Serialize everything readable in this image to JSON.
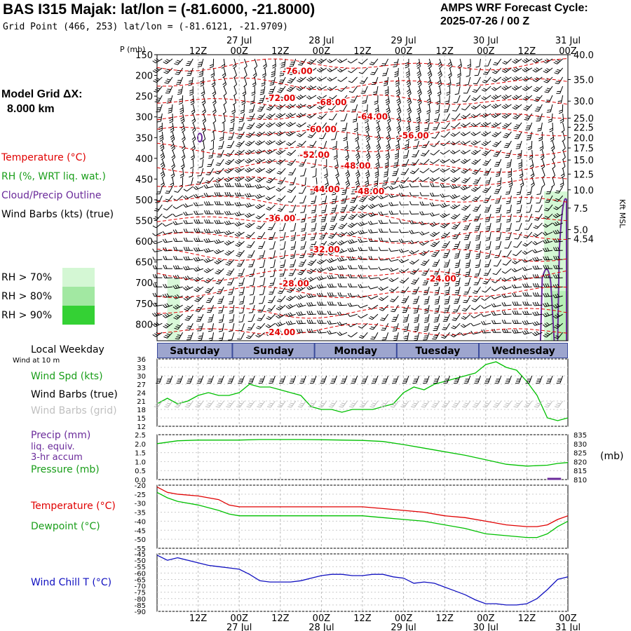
{
  "header": {
    "title": "BAS I315 Majak:  lat/lon = (-81.6000, -21.8000)",
    "grid_point": "Grid Point (466, 253) lat/lon = (-81.6121, -21.9709)",
    "cycle_line1": "AMPS WRF Forecast Cycle:",
    "cycle_line2": "2025-07-26 / 00  Z"
  },
  "model_grid": {
    "label": "Model Grid ΔX:",
    "value": "8.000 km"
  },
  "legend": {
    "temperature": "Temperature (°C)",
    "rh": "RH (%, WRT liq. wat.)",
    "cloud": "Cloud/Precip Outline",
    "wind": "Wind Barbs (kts) (true)",
    "rh70": "RH > 70%",
    "rh80": "RH > 80%",
    "rh90": "RH > 90%"
  },
  "colors": {
    "temperature": "#e00000",
    "rh": "#1a9e1a",
    "cloud": "#6a2a9a",
    "rh70": "#d4f7d4",
    "rh80": "#a2e8a2",
    "rh90": "#34d134",
    "series_green": "#00c000",
    "series_red": "#e00000",
    "series_blue": "#1010c0",
    "weekday_bar": "#3a4a9a"
  },
  "time_axis": {
    "hour_ticks": [
      "12Z",
      "00Z",
      "12Z",
      "00Z",
      "12Z",
      "00Z",
      "12Z",
      "00Z",
      "12Z",
      "00Z"
    ],
    "date_ticks": [
      "27 Jul",
      "28 Jul",
      "29 Jul",
      "30 Jul",
      "31 Jul"
    ],
    "weekdays": [
      "Saturday",
      "Sunday",
      "Monday",
      "Tuesday",
      "Wednesday"
    ],
    "weekday_title": "Local Weekday",
    "wind_height": "Wind at 10 m"
  },
  "cross_section": {
    "p_label": "P (mb)",
    "pressure_ticks": [
      "150",
      "200",
      "250",
      "300",
      "350",
      "400",
      "450",
      "500",
      "550",
      "600",
      "650",
      "700",
      "750",
      "800"
    ],
    "kft_ticks": [
      "40.0",
      "35.0",
      "30.0",
      "25.0",
      "22.5",
      "20.0",
      "17.5",
      "15.0",
      "12.5",
      "10.0",
      "7.5",
      "5.0",
      "4.54"
    ],
    "kft_label": "Kft MSL"
  },
  "panel_labels": {
    "wind_spd": "Wind Spd (kts)",
    "wind_barbs_true": "Wind Barbs (true)",
    "wind_barbs_grid": "Wind Barbs (grid)",
    "precip_1": "Precip (mm)",
    "precip_2": "liq. equiv.",
    "precip_3": "3-hr accum",
    "pressure": "Pressure (mb)",
    "pressure_unit": "(mb)",
    "temperature": "Temperature (°C)",
    "dewpoint": "Dewpoint (°C)",
    "wind_chill": "Wind Chill T (°C)"
  },
  "chart_data": [
    {
      "type": "heatmap",
      "panel": "time-height cross section",
      "y_axis": "pressure (mb)",
      "ylim": [
        840,
        150
      ],
      "xlim_hours": [
        0,
        120
      ],
      "temperature_contours": [
        {
          "label": "-76.00",
          "hour": 41,
          "p": 190
        },
        {
          "label": "-72.00",
          "hour": 36,
          "p": 255
        },
        {
          "label": "-68.00",
          "hour": 51,
          "p": 265
        },
        {
          "label": "-64.00",
          "hour": 63,
          "p": 300
        },
        {
          "label": "-60.00",
          "hour": 48,
          "p": 330
        },
        {
          "label": "-56.00",
          "hour": 75,
          "p": 345
        },
        {
          "label": "-52.00",
          "hour": 46,
          "p": 392
        },
        {
          "label": "-48.00",
          "hour": 58,
          "p": 418
        },
        {
          "label": "-44.00",
          "hour": 49,
          "p": 475
        },
        {
          "label": "-48.00",
          "hour": 62,
          "p": 480
        },
        {
          "label": "-36.00",
          "hour": 36,
          "p": 545
        },
        {
          "label": "-32.00",
          "hour": 49,
          "p": 620
        },
        {
          "label": "-24.00",
          "hour": 83,
          "p": 690
        },
        {
          "label": "-28.00",
          "hour": 40,
          "p": 702
        },
        {
          "label": "-24.00",
          "hour": 36,
          "p": 820
        }
      ]
    },
    {
      "type": "line",
      "panel": "wind speed",
      "ylim": [
        12,
        36
      ],
      "y_ticks": [
        "36",
        "33",
        "30",
        "27",
        "24",
        "21",
        "18",
        "15",
        "12"
      ],
      "x_hours": [
        0,
        3,
        6,
        9,
        12,
        15,
        18,
        21,
        24,
        27,
        30,
        33,
        36,
        39,
        42,
        45,
        48,
        51,
        54,
        57,
        60,
        63,
        66,
        69,
        72,
        75,
        78,
        81,
        84,
        87,
        90,
        93,
        96,
        99,
        102,
        105,
        108,
        111,
        114,
        117,
        120
      ],
      "series": [
        {
          "values": [
            20,
            22,
            20,
            21,
            23,
            24,
            23,
            23,
            24,
            27,
            26,
            26,
            25,
            24,
            23,
            19,
            18,
            18,
            17,
            18,
            18,
            18,
            19,
            20,
            24,
            26,
            25,
            27,
            28,
            29,
            30,
            31,
            34,
            35,
            33,
            32,
            28,
            23,
            15,
            14,
            15
          ]
        }
      ]
    },
    {
      "type": "line",
      "panel": "precip / pressure",
      "ylim": [
        0.0,
        2.5
      ],
      "y_ticks": [
        "2.5",
        "2.0",
        "1.5",
        "1.0",
        "0.5",
        "0.0"
      ],
      "y2_ticks": [
        "835",
        "830",
        "825",
        "820",
        "815",
        "810"
      ],
      "x_hours": [
        0,
        6,
        12,
        18,
        24,
        30,
        36,
        42,
        48,
        54,
        60,
        66,
        72,
        78,
        84,
        90,
        96,
        102,
        108,
        114,
        117,
        120
      ],
      "series": [
        {
          "values": [
            830.0,
            831.6,
            832.0,
            832.0,
            832.0,
            832.3,
            832.3,
            832.3,
            832.2,
            832.0,
            831.8,
            831.2,
            829.5,
            827.5,
            825.5,
            823.5,
            821.0,
            818.5,
            817.5,
            818.0,
            819.0,
            819.5
          ]
        }
      ]
    },
    {
      "type": "line",
      "panel": "temperature / dewpoint",
      "ylim": [
        -55,
        -20
      ],
      "y_ticks": [
        "-20",
        "-25",
        "-30",
        "-35",
        "-40",
        "-45",
        "-50",
        "-55"
      ],
      "x_hours": [
        0,
        3,
        6,
        12,
        18,
        21,
        24,
        30,
        36,
        42,
        48,
        54,
        60,
        66,
        72,
        78,
        84,
        90,
        96,
        102,
        108,
        111,
        114,
        117,
        120
      ],
      "series": [
        {
          "values": [
            -21,
            -24,
            -25,
            -26,
            -28,
            -31,
            -32,
            -32,
            -32,
            -32,
            -32,
            -32,
            -32,
            -33,
            -34,
            -35,
            -37,
            -38,
            -40,
            -42,
            -43,
            -43,
            -42,
            -39,
            -37
          ]
        },
        {
          "values": [
            -24,
            -27,
            -29,
            -31,
            -34,
            -36,
            -37,
            -37,
            -37,
            -37,
            -37,
            -37,
            -37,
            -38,
            -39,
            -40,
            -42,
            -44,
            -47,
            -48,
            -49,
            -49,
            -47,
            -43,
            -40
          ]
        }
      ]
    },
    {
      "type": "line",
      "panel": "wind chill",
      "ylim": [
        -90,
        -45
      ],
      "y_ticks": [
        "-45",
        "-50",
        "-55",
        "-60",
        "-65",
        "-70",
        "-75",
        "-80",
        "-85",
        "-90"
      ],
      "x_hours": [
        0,
        3,
        6,
        9,
        12,
        15,
        18,
        21,
        24,
        27,
        30,
        33,
        36,
        39,
        42,
        45,
        48,
        51,
        54,
        57,
        60,
        63,
        66,
        69,
        72,
        75,
        78,
        81,
        84,
        87,
        90,
        93,
        96,
        99,
        102,
        105,
        108,
        111,
        114,
        117,
        120
      ],
      "series": [
        {
          "values": [
            -46,
            -50,
            -48,
            -50,
            -52,
            -54,
            -55,
            -56,
            -57,
            -61,
            -66,
            -67,
            -67,
            -67,
            -66,
            -64,
            -62,
            -61,
            -61,
            -62,
            -62,
            -61,
            -61,
            -63,
            -64,
            -68,
            -67,
            -68,
            -71,
            -74,
            -77,
            -81,
            -84,
            -84,
            -85,
            -85,
            -84,
            -80,
            -73,
            -65,
            -63
          ]
        }
      ]
    }
  ]
}
